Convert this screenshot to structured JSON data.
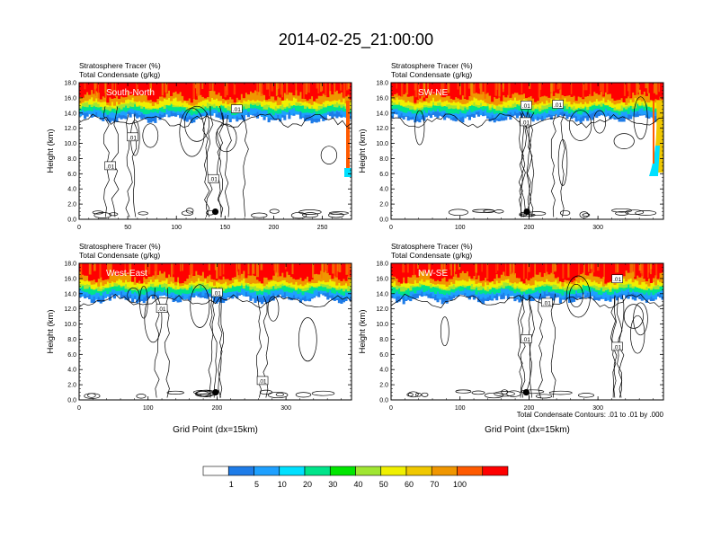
{
  "figure": {
    "title": "2014-02-25_21:00:00",
    "contour_note": "Total Condensate Contours: .01 to .01 by .000"
  },
  "colorbar": {
    "colors": [
      "#ffffff",
      "#1e7ce8",
      "#1ea0ff",
      "#00e0ff",
      "#00e48a",
      "#00e600",
      "#a0e632",
      "#f0f000",
      "#f0c800",
      "#f09600",
      "#ff5a00",
      "#ff0000"
    ],
    "labels": [
      "1",
      "5",
      "10",
      "20",
      "30",
      "40",
      "50",
      "60",
      "70",
      "100"
    ]
  },
  "chart_data": [
    {
      "type": "contour",
      "panel_label": "South-North",
      "variable_1": "Stratosphere Tracer   (%)",
      "variable_2": "Total Condensate   (g/kg)",
      "ylabel": "Height (km)",
      "xlabel": "",
      "xlim": [
        0,
        280
      ],
      "ylim": [
        0,
        18
      ],
      "xticks": [
        0,
        50,
        100,
        150,
        200,
        250
      ],
      "yticks": [
        "0.0",
        "2.0",
        "4.0",
        "6.0",
        "8.0",
        "10.0",
        "12.0",
        "14.0",
        "16.0",
        "18.0"
      ],
      "marker": {
        "x": 140,
        "y": 1.0
      },
      "contour_labels": [
        {
          "text": ".01",
          "x": 32,
          "y": 7.0
        },
        {
          "text": ".01",
          "x": 55,
          "y": 10.8
        },
        {
          "text": ".01",
          "x": 138,
          "y": 5.3
        },
        {
          "text": ".01",
          "x": 162,
          "y": 14.5
        }
      ]
    },
    {
      "type": "contour",
      "panel_label": "SW-NE",
      "variable_1": "Stratosphere Tracer   (%)",
      "variable_2": "Total Condensate   (g/kg)",
      "ylabel": "Height (km)",
      "xlabel": "",
      "xlim": [
        0,
        395
      ],
      "ylim": [
        0,
        18
      ],
      "xticks": [
        0,
        100,
        200,
        300
      ],
      "yticks": [
        "0.0",
        "2.0",
        "4.0",
        "6.0",
        "8.0",
        "10.0",
        "12.0",
        "14.0",
        "16.0",
        "18.0"
      ],
      "marker": {
        "x": 197,
        "y": 1.0
      },
      "contour_labels": [
        {
          "text": ".01",
          "x": 195,
          "y": 12.8
        },
        {
          "text": ".01",
          "x": 196,
          "y": 15.0
        },
        {
          "text": ".01",
          "x": 242,
          "y": 15.1
        }
      ]
    },
    {
      "type": "contour",
      "panel_label": "West-East",
      "variable_1": "Stratosphere Tracer   (%)",
      "variable_2": "Total Condensate   (g/kg)",
      "ylabel": "Height (km)",
      "xlabel": "Grid Point (dx=15km)",
      "xlim": [
        0,
        395
      ],
      "ylim": [
        0,
        18
      ],
      "xticks": [
        0,
        100,
        200,
        300
      ],
      "yticks": [
        "0.0",
        "2.0",
        "4.0",
        "6.0",
        "8.0",
        "10.0",
        "12.0",
        "14.0",
        "16.0",
        "18.0"
      ],
      "marker": {
        "x": 198,
        "y": 1.0
      },
      "contour_labels": [
        {
          "text": ".01",
          "x": 120,
          "y": 12.0
        },
        {
          "text": ".01",
          "x": 200,
          "y": 14.1
        },
        {
          "text": ".01",
          "x": 266,
          "y": 2.5
        }
      ]
    },
    {
      "type": "contour",
      "panel_label": "NW-SE",
      "variable_1": "Stratosphere Tracer   (%)",
      "variable_2": "Total Condensate   (g/kg)",
      "ylabel": "Height (km)",
      "xlabel": "Grid Point (dx=15km)",
      "xlim": [
        0,
        395
      ],
      "ylim": [
        0,
        18
      ],
      "xticks": [
        0,
        100,
        200,
        300
      ],
      "yticks": [
        "0.0",
        "2.0",
        "4.0",
        "6.0",
        "8.0",
        "10.0",
        "12.0",
        "14.0",
        "16.0",
        "18.0"
      ],
      "marker": {
        "x": 196,
        "y": 1.0
      },
      "contour_labels": [
        {
          "text": ".01",
          "x": 226,
          "y": 12.8
        },
        {
          "text": ".01",
          "x": 196,
          "y": 8.0
        },
        {
          "text": ".01",
          "x": 328,
          "y": 7.0
        },
        {
          "text": ".01",
          "x": 328,
          "y": 15.9
        }
      ]
    }
  ]
}
